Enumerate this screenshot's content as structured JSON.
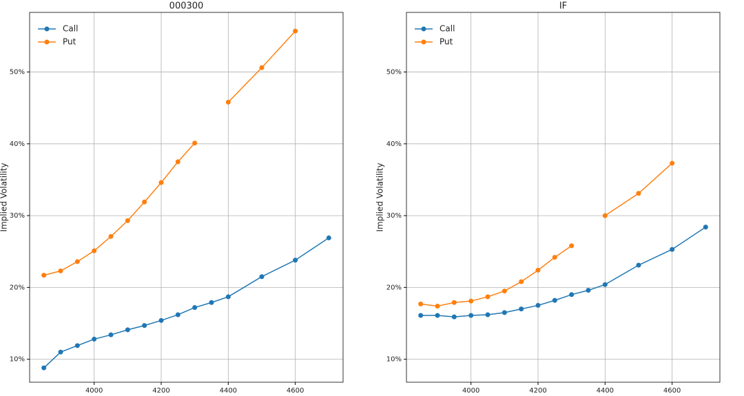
{
  "chart_data": [
    {
      "type": "line",
      "title": "000300",
      "y_label": "Implied Volatility",
      "x": [
        3850,
        3900,
        3950,
        4000,
        4050,
        4100,
        4150,
        4200,
        4250,
        4300,
        4350,
        4400,
        4500,
        4600,
        4700
      ],
      "series": [
        {
          "name": "Call",
          "color": "#1f77b4",
          "values": [
            8.8,
            11.0,
            11.9,
            12.8,
            13.4,
            14.1,
            14.7,
            15.4,
            16.2,
            17.2,
            17.9,
            18.7,
            21.5,
            23.8,
            26.9
          ]
        },
        {
          "name": "Put",
          "color": "#ff7f0e",
          "values": [
            21.7,
            22.3,
            23.6,
            25.1,
            27.1,
            29.3,
            31.9,
            34.6,
            37.5,
            40.1,
            null,
            45.8,
            50.6,
            55.7,
            null
          ]
        }
      ],
      "xlim": [
        3807.5,
        4742.5
      ],
      "xticks": [
        4000,
        4200,
        4400,
        4600
      ],
      "ylim": [
        6.8,
        58.3
      ],
      "yticks": [
        {
          "value": 10,
          "label": "10%"
        },
        {
          "value": 20,
          "label": "20%"
        },
        {
          "value": 30,
          "label": "30%"
        },
        {
          "value": 40,
          "label": "40%"
        },
        {
          "value": 50,
          "label": "50%"
        }
      ],
      "grid": true,
      "legend": "upper left"
    },
    {
      "type": "line",
      "title": "IF",
      "y_label": "Implied Volatility",
      "x": [
        3850,
        3900,
        3950,
        4000,
        4050,
        4100,
        4150,
        4200,
        4250,
        4300,
        4350,
        4400,
        4500,
        4600,
        4700
      ],
      "series": [
        {
          "name": "Call",
          "color": "#1f77b4",
          "values": [
            16.1,
            16.1,
            15.9,
            16.1,
            16.2,
            16.5,
            17.0,
            17.5,
            18.2,
            19.0,
            19.6,
            20.4,
            23.1,
            25.3,
            28.4
          ]
        },
        {
          "name": "Put",
          "color": "#ff7f0e",
          "values": [
            17.7,
            17.4,
            17.9,
            18.1,
            18.7,
            19.5,
            20.8,
            22.4,
            24.2,
            25.8,
            null,
            30.0,
            33.1,
            37.3,
            null
          ]
        }
      ],
      "xlim": [
        3807.5,
        4742.5
      ],
      "xticks": [
        4000,
        4200,
        4400,
        4600
      ],
      "ylim": [
        6.8,
        58.3
      ],
      "yticks": [
        {
          "value": 10,
          "label": "10%"
        },
        {
          "value": 20,
          "label": "20%"
        },
        {
          "value": 30,
          "label": "30%"
        },
        {
          "value": 40,
          "label": "40%"
        },
        {
          "value": 50,
          "label": "50%"
        }
      ],
      "grid": true,
      "legend": "upper left"
    }
  ]
}
